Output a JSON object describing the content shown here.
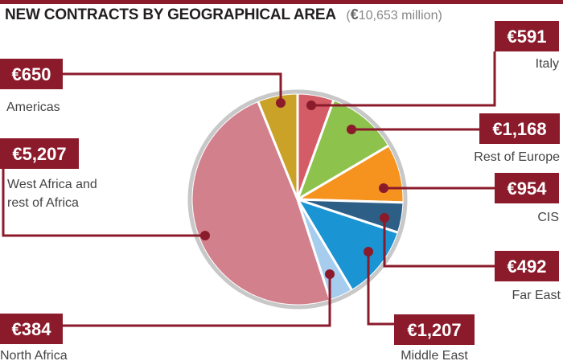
{
  "title": "NEW CONTRACTS BY GEOGRAPHICAL AREA",
  "subtitle_open": "(",
  "subtitle_euro": "€",
  "subtitle_amount": "10,653 million)",
  "colors": {
    "accent": "#8b1a2b",
    "pie_border": "#c8c8c8"
  },
  "chart_data": {
    "type": "pie",
    "title": "NEW CONTRACTS BY GEOGRAPHICAL AREA",
    "total": "€10,653 million",
    "unit": "€ million",
    "slices": [
      {
        "name": "Italy",
        "value": 591,
        "display": "€591",
        "color": "#d45c66"
      },
      {
        "name": "Rest of Europe",
        "value": 1168,
        "display": "€1,168",
        "color": "#8dc24d"
      },
      {
        "name": "CIS",
        "value": 954,
        "display": "€954",
        "color": "#f6931f"
      },
      {
        "name": "Far East",
        "value": 492,
        "display": "€492",
        "color": "#2d5f86"
      },
      {
        "name": "Middle East",
        "value": 1207,
        "display": "€1,207",
        "color": "#1a94d3"
      },
      {
        "name": "North Africa",
        "value": 384,
        "display": "€384",
        "color": "#a6cdee"
      },
      {
        "name": "West Africa and rest of Africa",
        "value": 5207,
        "display": "€5,207",
        "color": "#d3808d"
      },
      {
        "name": "Americas",
        "value": 650,
        "display": "€650",
        "color": "#c9a227"
      }
    ]
  }
}
